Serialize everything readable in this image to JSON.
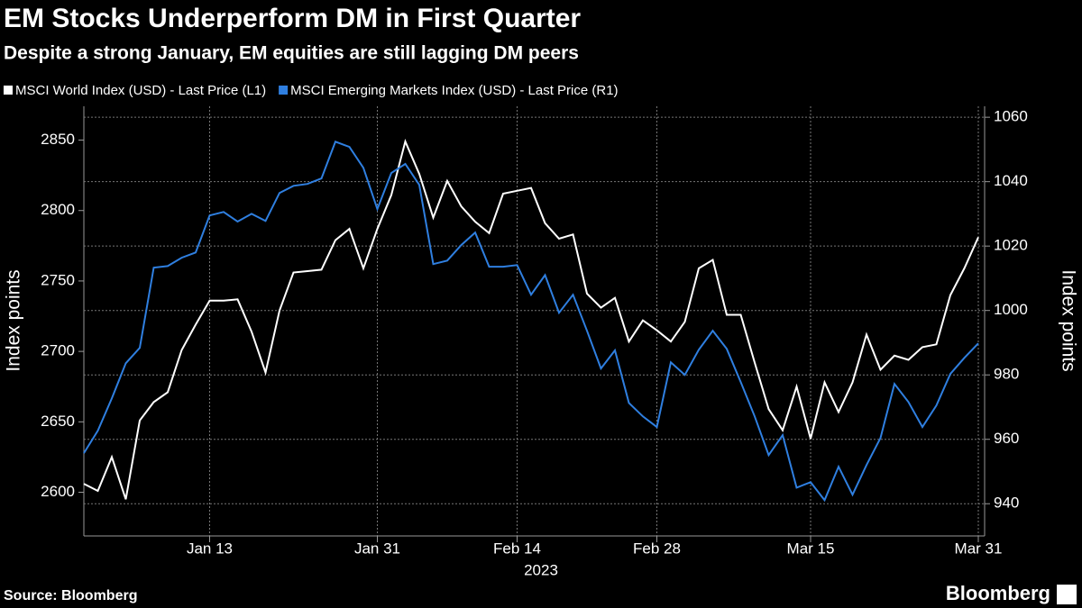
{
  "chart_data": {
    "type": "line",
    "title": "EM Stocks Underperform DM in First Quarter",
    "subtitle": "Despite a strong January, EM equities are still lagging DM peers",
    "x_label": "2023",
    "y_label": "Index points",
    "y2_label": "Index points",
    "source": "Source: Bloomberg",
    "brand": "Bloomberg",
    "grid": true,
    "x": [
      "2023-01-02",
      "2023-01-03",
      "2023-01-04",
      "2023-01-05",
      "2023-01-06",
      "2023-01-09",
      "2023-01-10",
      "2023-01-11",
      "2023-01-12",
      "2023-01-13",
      "2023-01-16",
      "2023-01-17",
      "2023-01-18",
      "2023-01-19",
      "2023-01-20",
      "2023-01-23",
      "2023-01-24",
      "2023-01-25",
      "2023-01-26",
      "2023-01-27",
      "2023-01-30",
      "2023-01-31",
      "2023-02-01",
      "2023-02-02",
      "2023-02-03",
      "2023-02-06",
      "2023-02-07",
      "2023-02-08",
      "2023-02-09",
      "2023-02-10",
      "2023-02-13",
      "2023-02-14",
      "2023-02-15",
      "2023-02-16",
      "2023-02-17",
      "2023-02-20",
      "2023-02-21",
      "2023-02-22",
      "2023-02-23",
      "2023-02-24",
      "2023-02-27",
      "2023-02-28",
      "2023-03-01",
      "2023-03-02",
      "2023-03-03",
      "2023-03-06",
      "2023-03-07",
      "2023-03-08",
      "2023-03-09",
      "2023-03-10",
      "2023-03-13",
      "2023-03-14",
      "2023-03-15",
      "2023-03-16",
      "2023-03-17",
      "2023-03-20",
      "2023-03-21",
      "2023-03-22",
      "2023-03-23",
      "2023-03-24",
      "2023-03-27",
      "2023-03-28",
      "2023-03-29",
      "2023-03-30",
      "2023-03-31"
    ],
    "xticks": [
      {
        "value": "2023-01-13",
        "label": "Jan 13"
      },
      {
        "value": "2023-01-31",
        "label": "Jan 31"
      },
      {
        "value": "2023-02-14",
        "label": "Feb 14"
      },
      {
        "value": "2023-02-28",
        "label": "Feb 28"
      },
      {
        "value": "2023-03-15",
        "label": "Mar 15"
      },
      {
        "value": "2023-03-31",
        "label": "Mar 31"
      }
    ],
    "ylim": [
      2569,
      2874
    ],
    "yticks": [
      2600,
      2650,
      2700,
      2750,
      2800,
      2850
    ],
    "y2lim": [
      930,
      1063.4
    ],
    "y2ticks": [
      940,
      960,
      980,
      1000,
      1020,
      1040,
      1060
    ],
    "series": [
      {
        "name": "MSCI World Index (USD) - Last Price (L1)",
        "color": "#ffffff",
        "values": [
          2606,
          2601,
          2625,
          2595,
          2651,
          2664,
          2671,
          2701,
          2719,
          2736,
          2736,
          2737,
          2714,
          2685,
          2729,
          2756,
          2757,
          2758,
          2779,
          2787,
          2759,
          2787,
          2811,
          2849,
          2826,
          2795,
          2821,
          2803,
          2792,
          2784,
          2812,
          2814,
          2816,
          2791,
          2780,
          2783,
          2741,
          2731,
          2738,
          2707,
          2722,
          2715,
          2707,
          2721,
          2759,
          2765,
          2726,
          2726,
          2692,
          2659,
          2644,
          2675,
          2638,
          2678,
          2657,
          2678,
          2712,
          2687,
          2697,
          2694,
          2703,
          2705,
          2740,
          2759,
          2781
        ]
      },
      {
        "name": "MSCI Emerging Markets Index (USD) - Last Price (R1)",
        "color": "#2f7fe0",
        "axis": "y2",
        "values": [
          955.7,
          962.7,
          972.7,
          983.6,
          988.4,
          1013.3,
          1013.8,
          1016.4,
          1018,
          1029.5,
          1030.6,
          1027.6,
          1030,
          1027.8,
          1036.5,
          1038.7,
          1039.3,
          1041,
          1052.4,
          1050.8,
          1044.3,
          1031.5,
          1042.7,
          1045.5,
          1039,
          1014.4,
          1015.5,
          1020.3,
          1024.2,
          1013.6,
          1013.6,
          1014.1,
          1004.9,
          1011,
          999.3,
          1004.9,
          993.7,
          982,
          987.6,
          971.3,
          967.1,
          963.8,
          983.9,
          980,
          987.8,
          993.7,
          988.1,
          977.8,
          967.1,
          955.1,
          961.3,
          945,
          946.7,
          941.1,
          951.5,
          942.8,
          952,
          960.4,
          977.2,
          971.6,
          963.8,
          970.5,
          980.3,
          985.3,
          989.8
        ]
      }
    ]
  }
}
